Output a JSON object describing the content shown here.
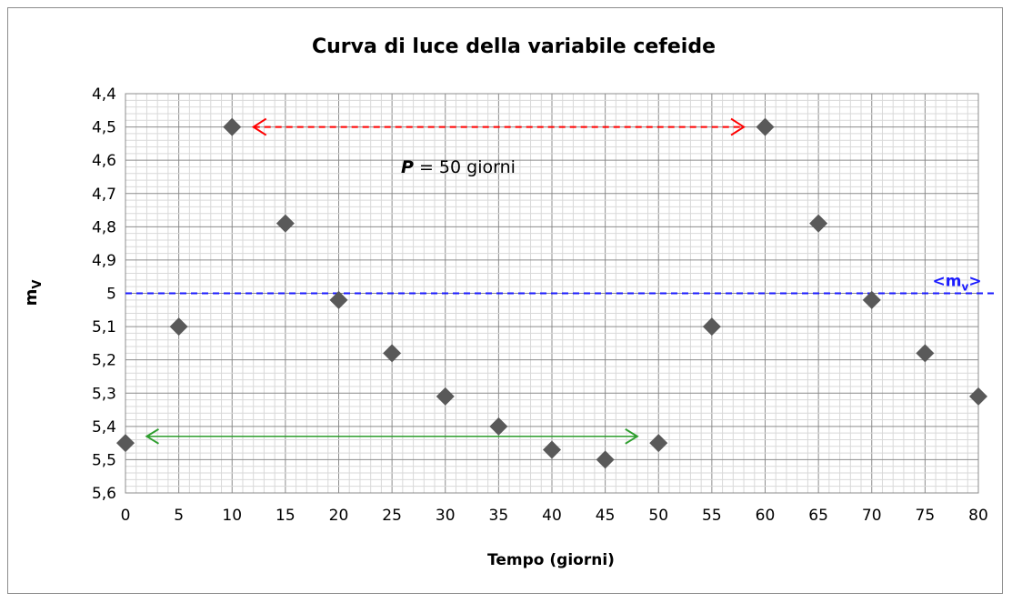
{
  "chart_data": {
    "type": "scatter",
    "title": "Curva di luce della variabile cefeide",
    "xlabel": "Tempo (giorni)",
    "ylabel": "m",
    "ylabel_sub": "V",
    "xlim": [
      0,
      80
    ],
    "ylim": [
      4.4,
      5.6
    ],
    "y_inverted": true,
    "x_ticks": [
      "0",
      "5",
      "10",
      "15",
      "20",
      "25",
      "30",
      "35",
      "40",
      "45",
      "50",
      "55",
      "60",
      "65",
      "70",
      "75",
      "80"
    ],
    "y_ticks": [
      "4,4",
      "4,5",
      "4,6",
      "4,7",
      "4,8",
      "4,9",
      "5",
      "5,1",
      "5,2",
      "5,3",
      "5,4",
      "5,5",
      "5,6"
    ],
    "grid": true,
    "series": [
      {
        "marker": "diamond",
        "color": "#595959",
        "points": [
          {
            "x": 0,
            "y": 5.45
          },
          {
            "x": 5,
            "y": 5.1
          },
          {
            "x": 10,
            "y": 4.5
          },
          {
            "x": 15,
            "y": 4.79
          },
          {
            "x": 20,
            "y": 5.02
          },
          {
            "x": 25,
            "y": 5.18
          },
          {
            "x": 30,
            "y": 5.31
          },
          {
            "x": 35,
            "y": 5.4
          },
          {
            "x": 40,
            "y": 5.47
          },
          {
            "x": 45,
            "y": 5.5
          },
          {
            "x": 50,
            "y": 5.45
          },
          {
            "x": 55,
            "y": 5.1
          },
          {
            "x": 60,
            "y": 4.5
          },
          {
            "x": 65,
            "y": 4.79
          },
          {
            "x": 70,
            "y": 5.02
          },
          {
            "x": 75,
            "y": 5.18
          },
          {
            "x": 80,
            "y": 5.31
          }
        ]
      }
    ],
    "mean_line": {
      "y": 5.0,
      "color": "#1a1aff",
      "label": "<m",
      "label_sub": "v",
      "label_end": ">"
    },
    "annotations": {
      "period_label_bold": "P",
      "period_label_rest": " = 50 giorni",
      "red_arrow": {
        "x_start": 12,
        "x_end": 58,
        "y": 4.5,
        "color": "#ff0000"
      },
      "green_arrow": {
        "x_start": 2,
        "x_end": 48,
        "y": 5.43,
        "color": "#2e9e2e"
      }
    }
  }
}
